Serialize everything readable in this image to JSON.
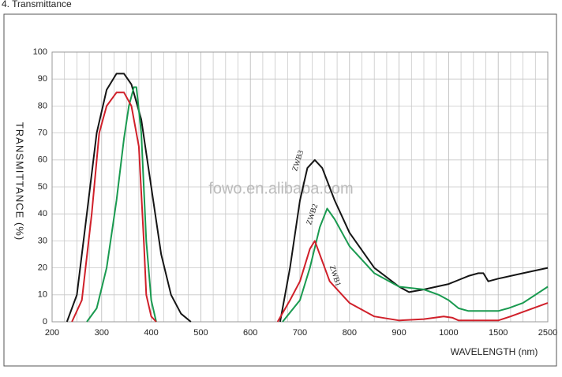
{
  "page_title": "4. Transmittance",
  "chart_data": {
    "type": "line",
    "y_label": "TRANSMITTANCE (%)",
    "x_label": "WAVELENGTH (nm)",
    "watermark": "fowo.en.alibaba.com",
    "xlim": [
      200,
      2500
    ],
    "xticks": [
      200,
      300,
      400,
      500,
      600,
      700,
      800,
      900,
      1000,
      1500,
      2500
    ],
    "ylim": [
      0,
      100
    ],
    "yticks": [
      0,
      10,
      20,
      30,
      40,
      50,
      60,
      70,
      80,
      90,
      100
    ],
    "grid": true,
    "series": [
      {
        "name": "ZWB3",
        "color": "#151515",
        "x": [
          230,
          250,
          270,
          290,
          310,
          330,
          345,
          360,
          380,
          400,
          420,
          440,
          460,
          480,
          null,
          660,
          680,
          700,
          715,
          730,
          745,
          770,
          800,
          850,
          900,
          920,
          950,
          1000,
          1100,
          1200,
          1300,
          1350,
          1400,
          1500,
          2000,
          2500
        ],
        "values": [
          0,
          10,
          40,
          70,
          86,
          92,
          92,
          88,
          75,
          50,
          25,
          10,
          3,
          0,
          null,
          0,
          20,
          45,
          57,
          60,
          57,
          45,
          33,
          20,
          13,
          11,
          12,
          14,
          15.5,
          17,
          18,
          18,
          15,
          16,
          18,
          20
        ]
      },
      {
        "name": "ZWB2",
        "color": "#1a9a50",
        "x": [
          270,
          290,
          310,
          330,
          345,
          355,
          365,
          370,
          380,
          390,
          400,
          410,
          null,
          665,
          700,
          720,
          740,
          755,
          770,
          800,
          850,
          900,
          950,
          980,
          1000,
          1100,
          1200,
          1500,
          1700,
          2000,
          2500
        ],
        "values": [
          0,
          5,
          20,
          45,
          68,
          80,
          87,
          87,
          70,
          30,
          8,
          0,
          null,
          0,
          8,
          20,
          35,
          42,
          38,
          28,
          18,
          13,
          12,
          10,
          8,
          5,
          4,
          4,
          5,
          7,
          13
        ]
      },
      {
        "name": "ZWB1",
        "color": "#d0202a",
        "x": [
          240,
          260,
          280,
          295,
          310,
          330,
          345,
          360,
          375,
          385,
          390,
          400,
          410,
          null,
          655,
          680,
          700,
          720,
          730,
          740,
          760,
          800,
          850,
          900,
          950,
          990,
          1040,
          1100,
          1500,
          1750,
          2500
        ],
        "values": [
          0,
          8,
          40,
          70,
          80,
          85,
          85,
          80,
          65,
          30,
          10,
          2,
          0,
          null,
          0,
          8,
          15,
          27,
          30,
          25,
          15,
          7,
          2,
          0.5,
          1,
          2,
          1.5,
          0.5,
          0.5,
          2,
          7
        ]
      }
    ]
  }
}
